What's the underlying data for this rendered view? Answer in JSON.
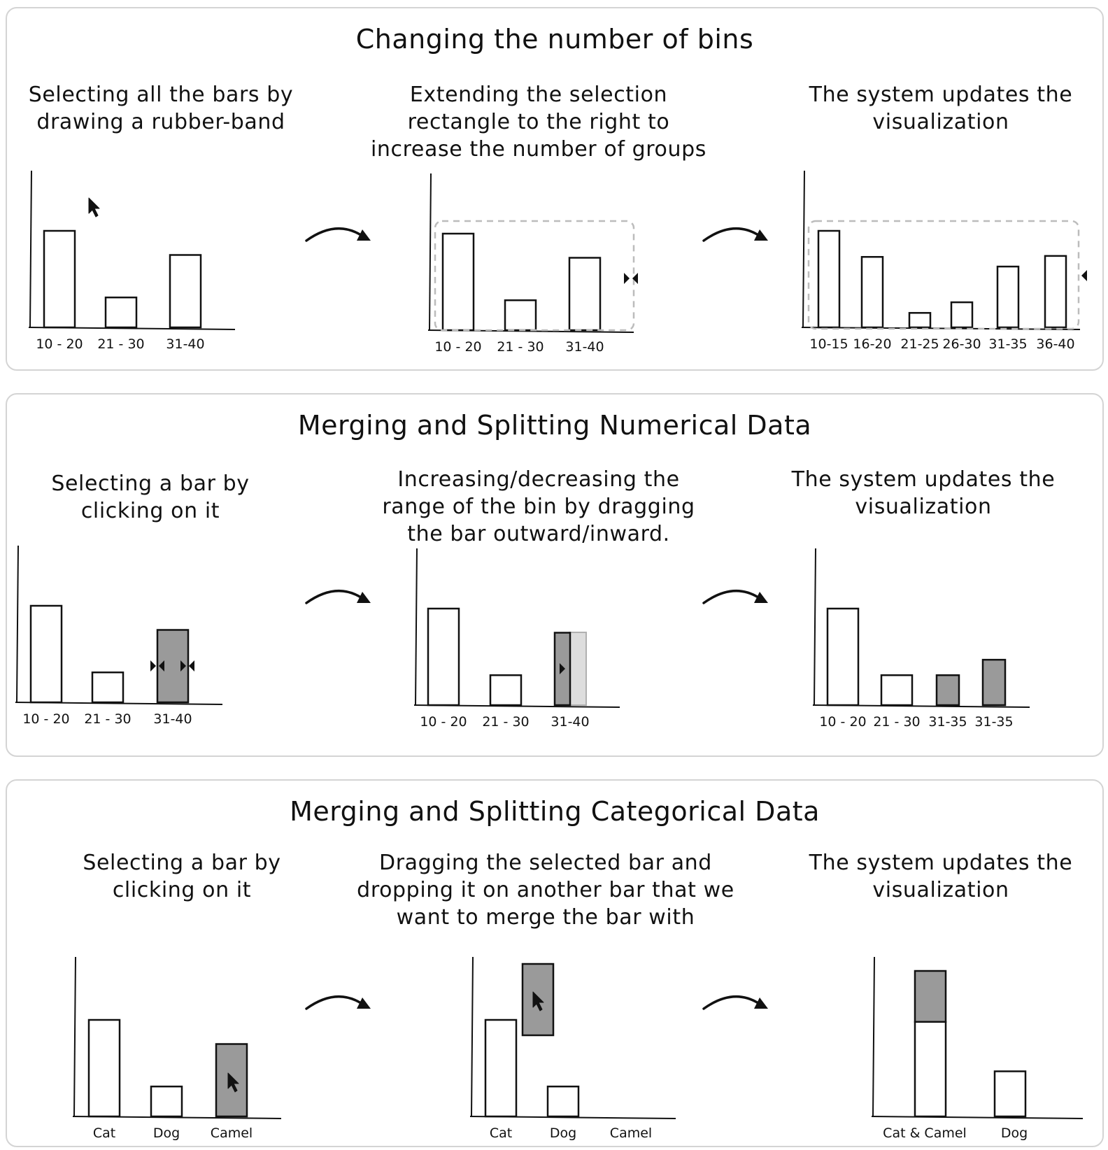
{
  "sections": [
    {
      "title": "Changing the number of bins",
      "steps": [
        {
          "caption": "Selecting all the bars by\ndrawing a rubber-band",
          "bars": [
            {
              "label": "10 - 20",
              "value": 1.0
            },
            {
              "label": "21 - 30",
              "value": 0.31
            },
            {
              "label": "31-40",
              "value": 0.75
            }
          ]
        },
        {
          "caption": "Extending the selection\nrectangle to the right to\nincrease the number of groups",
          "bars": [
            {
              "label": "10 - 20",
              "value": 1.0
            },
            {
              "label": "21 - 30",
              "value": 0.31
            },
            {
              "label": "31-40",
              "value": 0.75
            }
          ]
        },
        {
          "caption": "The system updates the\nvisualization",
          "bars": [
            {
              "label": "10-15",
              "value": 1.0
            },
            {
              "label": "16-20",
              "value": 0.73
            },
            {
              "label": "21-25",
              "value": 0.15
            },
            {
              "label": "26-30",
              "value": 0.26
            },
            {
              "label": "31-35",
              "value": 0.63
            },
            {
              "label": "36-40",
              "value": 0.74
            }
          ]
        }
      ]
    },
    {
      "title": "Merging and Splitting Numerical Data",
      "steps": [
        {
          "caption": "Selecting a bar by\nclicking on it",
          "bars": [
            {
              "label": "10 - 20",
              "value": 1.0
            },
            {
              "label": "21 - 30",
              "value": 0.31
            },
            {
              "label": "31-40",
              "value": 0.75,
              "selected": true
            }
          ]
        },
        {
          "caption": "Increasing/decreasing the\nrange of the bin by dragging\nthe bar outward/inward.",
          "bars": [
            {
              "label": "10 - 20",
              "value": 1.0
            },
            {
              "label": "21 - 30",
              "value": 0.31
            },
            {
              "label": "31-40",
              "value": 0.75,
              "selected": true
            }
          ]
        },
        {
          "caption": "The system updates the\nvisualization",
          "bars": [
            {
              "label": "10 - 20",
              "value": 1.0
            },
            {
              "label": "21 - 30",
              "value": 0.31
            },
            {
              "label": "31-35",
              "value": 0.31,
              "selected": true
            },
            {
              "label": "31-35",
              "value": 0.47,
              "selected": true
            }
          ]
        }
      ]
    },
    {
      "title": "Merging and Splitting Categorical Data",
      "steps": [
        {
          "caption": "Selecting a bar by\nclicking on it",
          "bars": [
            {
              "label": "Cat",
              "value": 1.0
            },
            {
              "label": "Dog",
              "value": 0.31
            },
            {
              "label": "Camel",
              "value": 0.75,
              "selected": true
            }
          ]
        },
        {
          "caption": "Dragging the selected bar and\ndropping it on another bar that we\nwant to merge the bar with",
          "bars": [
            {
              "label": "Cat",
              "value": 1.0
            },
            {
              "label": "Dog",
              "value": 0.31
            },
            {
              "label": "Camel",
              "value": 0.75,
              "selected": true
            }
          ]
        },
        {
          "caption": "The system updates the\nvisualization",
          "bars": [
            {
              "label": "Cat & Camel",
              "value": 1.0,
              "stacked_value": 0.65
            },
            {
              "label": "Dog",
              "value": 0.31
            }
          ]
        }
      ]
    }
  ],
  "colors": {
    "outline": "#111111",
    "selected": "#9a9a9a",
    "ghost": "#dddddd",
    "dashed": "#bcbcbc",
    "panel_border": "#d4d4d4"
  },
  "icons": [
    "cursor-arrow-icon",
    "curved-arrow-icon",
    "resize-handle-icon"
  ]
}
